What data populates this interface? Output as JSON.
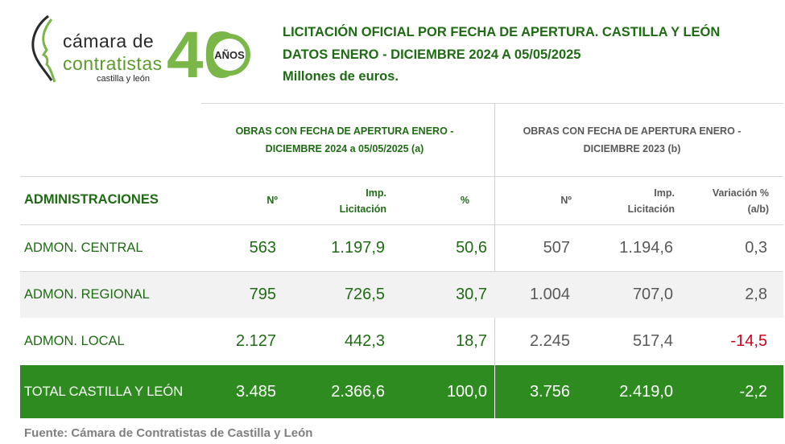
{
  "logo": {
    "line1": "cámara de",
    "line2": "contratistas",
    "line3": "castilla y león",
    "badge_text": "AÑOS",
    "badge_number": "40"
  },
  "title": {
    "line1": "LICITACIÓN OFICIAL POR FECHA DE APERTURA. CASTILLA Y LEÓN",
    "line2": "DATOS ENERO - DICIEMBRE 2024 A 05/05/2025",
    "line3": "Millones de euros."
  },
  "groups": {
    "a_line1": "OBRAS CON FECHA DE APERTURA ENERO -",
    "a_line2": "DICIEMBRE 2024 a 05/05/2025 (a)",
    "b_line1": "OBRAS CON FECHA DE APERTURA ENERO -",
    "b_line2": "DICIEMBRE 2023 (b)"
  },
  "headers": {
    "administraciones": "ADMINISTRACIONES",
    "num_a": "Nº",
    "imp_a_1": "Imp.",
    "imp_a_2": "Licitación",
    "pct_a": "%",
    "num_b": "Nº",
    "imp_b_1": "Imp.",
    "imp_b_2": "Licitación",
    "var_1": "Variación %",
    "var_2": "(a/b)"
  },
  "rows": [
    {
      "label": "ADMON. CENTRAL",
      "num_a": "563",
      "imp_a": "1.197,9",
      "pct_a": "50,6",
      "num_b": "507",
      "imp_b": "1.194,6",
      "var": "0,3"
    },
    {
      "label": "ADMON. REGIONAL",
      "num_a": "795",
      "imp_a": "726,5",
      "pct_a": "30,7",
      "num_b": "1.004",
      "imp_b": "707,0",
      "var": "2,8"
    },
    {
      "label": "ADMON. LOCAL",
      "num_a": "2.127",
      "imp_a": "442,3",
      "pct_a": "18,7",
      "num_b": "2.245",
      "imp_b": "517,4",
      "var": "-14,5"
    }
  ],
  "total": {
    "label": "TOTAL CASTILLA Y LEÓN",
    "num_a": "3.485",
    "imp_a": "2.366,6",
    "pct_a": "100,0",
    "num_b": "3.756",
    "imp_b": "2.419,0",
    "var": "-2,2"
  },
  "source": "Fuente: Cámara de Contratistas de Castilla y León",
  "colors": {
    "brand_green": "#1f6b14",
    "total_bg": "#2e8b1f",
    "negative": "#d0021b",
    "logo_green": "#5d9a2c"
  }
}
